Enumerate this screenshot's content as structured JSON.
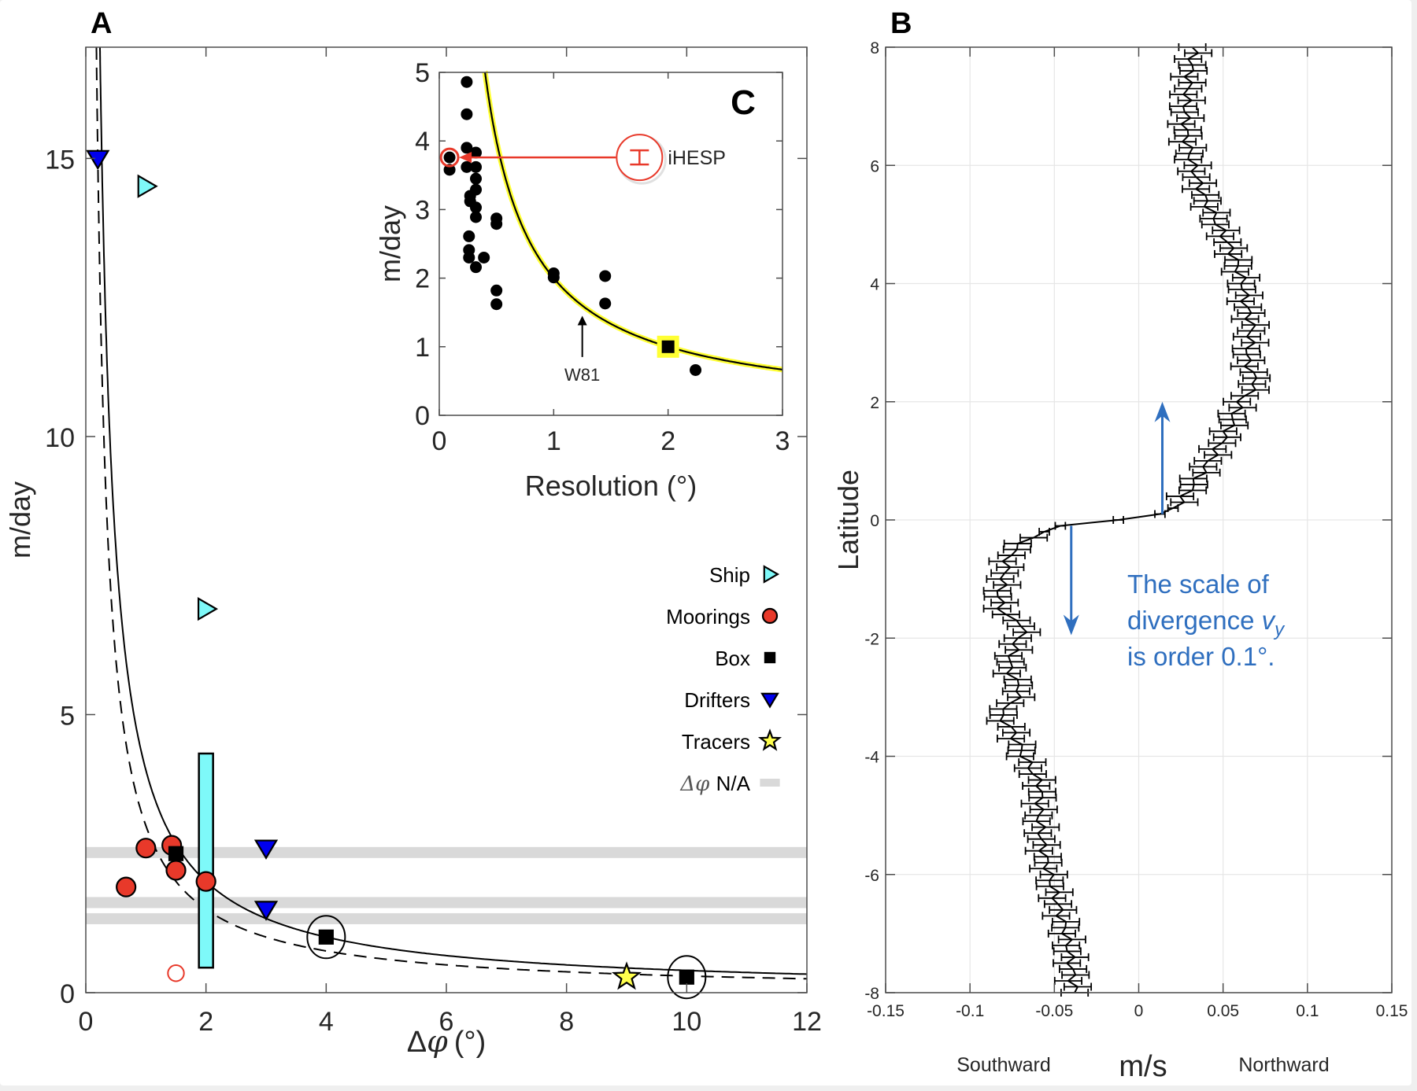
{
  "figure": {
    "panel_labels": {
      "a": "A",
      "b": "B",
      "c": "C"
    }
  },
  "chart_data": [
    {
      "id": "panelA",
      "type": "scatter",
      "title": "",
      "panel_label": "A",
      "xlabel": "Δφ (°)",
      "xlabel_symbol": "Δ",
      "xlabel_var": "φ",
      "xlabel_unit": "(°)",
      "ylabel": "m/day",
      "xlim": [
        0,
        12
      ],
      "ylim": [
        0,
        17
      ],
      "xticks": [
        0,
        2,
        4,
        6,
        8,
        10,
        12
      ],
      "yticks": [
        0,
        5,
        10,
        15
      ],
      "grid": false,
      "legend_position": "right-middle",
      "curves": [
        {
          "name": "solid fit",
          "style": "solid",
          "coefficient": 4,
          "formula": "y = 4/x"
        },
        {
          "name": "dashed fit",
          "style": "dashed",
          "coefficient": 3,
          "formula": "y = 3/x"
        }
      ],
      "na_bands": [
        2.52,
        1.62,
        1.33
      ],
      "range_bar": {
        "series": "Ship",
        "x": 2.0,
        "ymin": 0.45,
        "ymax": 4.3
      },
      "series": [
        {
          "name": "Ship",
          "marker": "triangle-right",
          "color": "#7ef9f9",
          "points": [
            [
              1.0,
              14.5
            ],
            [
              2.0,
              6.9
            ]
          ]
        },
        {
          "name": "Moorings",
          "marker": "circle",
          "color": "#e8392a",
          "points": [
            [
              0.67,
              1.9
            ],
            [
              1.0,
              2.6
            ],
            [
              1.43,
              2.65
            ],
            [
              1.5,
              2.2
            ],
            [
              2.0,
              2.0
            ]
          ]
        },
        {
          "name": "Moorings (open)",
          "marker": "open-circle",
          "color": "#e8392a",
          "points": [
            [
              1.5,
              0.35
            ]
          ]
        },
        {
          "name": "Box",
          "marker": "square",
          "color": "#000000",
          "points": [
            [
              1.5,
              2.5
            ],
            [
              4.0,
              1.0
            ],
            [
              10.0,
              0.28
            ]
          ],
          "circled": [
            [
              4.0,
              1.0
            ],
            [
              10.0,
              0.28
            ]
          ]
        },
        {
          "name": "Drifters",
          "marker": "triangle-down",
          "color": "#0000ee",
          "points": [
            [
              0.2,
              15.0
            ],
            [
              3.0,
              2.6
            ],
            [
              3.0,
              1.5
            ]
          ]
        },
        {
          "name": "Tracers",
          "marker": "star",
          "color": "#ffff4d",
          "points": [
            [
              9.0,
              0.28
            ]
          ]
        }
      ],
      "legend": [
        {
          "label": "Ship",
          "marker": "triangle-right",
          "color": "#7ef9f9"
        },
        {
          "label": "Moorings",
          "marker": "circle",
          "color": "#e8392a"
        },
        {
          "label": "Box",
          "marker": "square",
          "color": "#000000"
        },
        {
          "label": "Drifters",
          "marker": "triangle-down",
          "color": "#0000ee"
        },
        {
          "label": "Tracers",
          "marker": "star",
          "color": "#ffff4d"
        },
        {
          "label": "N/A",
          "label_prefix": "Δφ",
          "marker": "band",
          "color": "#d9d9d9"
        }
      ]
    },
    {
      "id": "panelC",
      "type": "scatter",
      "panel_label": "C",
      "xlabel": "Resolution (°)",
      "ylabel": "m/day",
      "xlim": [
        0,
        3
      ],
      "ylim": [
        0,
        5
      ],
      "xticks": [
        0,
        1,
        2,
        3
      ],
      "yticks": [
        0,
        1,
        2,
        3,
        4,
        5
      ],
      "grid": false,
      "curve": {
        "style": "solid-with-yellow-halo",
        "coefficient": 2,
        "formula": "y = 2/x",
        "halo_color": "#ffff33"
      },
      "points": [
        [
          0.24,
          4.86
        ],
        [
          0.24,
          4.39
        ],
        [
          0.24,
          3.9
        ],
        [
          0.09,
          3.58
        ],
        [
          0.32,
          3.83
        ],
        [
          0.24,
          3.62
        ],
        [
          0.32,
          3.62
        ],
        [
          0.32,
          3.45
        ],
        [
          0.32,
          3.29
        ],
        [
          0.27,
          3.2
        ],
        [
          0.27,
          3.12
        ],
        [
          0.32,
          3.03
        ],
        [
          0.32,
          2.89
        ],
        [
          0.5,
          2.87
        ],
        [
          0.5,
          2.79
        ],
        [
          0.26,
          2.61
        ],
        [
          0.26,
          2.41
        ],
        [
          0.26,
          2.3
        ],
        [
          0.39,
          2.3
        ],
        [
          0.32,
          2.16
        ],
        [
          0.5,
          1.82
        ],
        [
          0.5,
          1.62
        ],
        [
          1.0,
          2.07
        ],
        [
          1.0,
          2.01
        ],
        [
          1.45,
          2.03
        ],
        [
          1.45,
          1.63
        ],
        [
          2.24,
          0.66
        ]
      ],
      "highlight_point": {
        "label": "iHESP",
        "x": 0.09,
        "y": 3.76,
        "color": "#e8392a"
      },
      "box_point": {
        "x": 2.0,
        "y": 1.0,
        "halo_color": "#ffff33"
      },
      "annotations": [
        {
          "text": "W81",
          "x": 1.25,
          "arrow_from_y": 0.85,
          "arrow_to_y": 1.45
        },
        {
          "text": "iHESP",
          "callout_x": 1.75,
          "callout_y": 3.76
        }
      ]
    },
    {
      "id": "panelB",
      "type": "line",
      "panel_label": "B",
      "xlabel": "m/s",
      "xlabel_left": "Southward",
      "xlabel_right": "Northward",
      "ylabel": "Latitude",
      "xlim": [
        -0.15,
        0.15
      ],
      "ylim": [
        -8,
        8
      ],
      "xticks": [
        -0.15,
        -0.1,
        -0.05,
        0,
        0.05,
        0.1,
        0.15
      ],
      "xtick_labels": [
        "-0.15",
        "-0.1",
        "-0.05",
        "0",
        "0.05",
        "0.1",
        "0.15"
      ],
      "yticks": [
        -8,
        -6,
        -4,
        -2,
        0,
        2,
        4,
        6,
        8
      ],
      "grid": true,
      "errorbar_step_deg": 0.1,
      "errorbar_halfwidth": 0.008,
      "errorbar_halfwidth_equator": 0.003,
      "profile": [
        [
          -8,
          -0.038
        ],
        [
          -7.5,
          -0.04
        ],
        [
          -7,
          -0.043
        ],
        [
          -6.5,
          -0.048
        ],
        [
          -6,
          -0.053
        ],
        [
          -5.5,
          -0.057
        ],
        [
          -5,
          -0.059
        ],
        [
          -4.5,
          -0.058
        ],
        [
          -4,
          -0.068
        ],
        [
          -3.5,
          -0.076
        ],
        [
          -3.3,
          -0.083
        ],
        [
          -3.1,
          -0.075
        ],
        [
          -2.9,
          -0.07
        ],
        [
          -2.5,
          -0.077
        ],
        [
          -2.1,
          -0.073
        ],
        [
          -1.8,
          -0.067
        ],
        [
          -1.6,
          -0.08
        ],
        [
          -1.3,
          -0.083
        ],
        [
          -1.0,
          -0.08
        ],
        [
          -0.6,
          -0.077
        ],
        [
          -0.3,
          -0.065
        ],
        [
          -0.1,
          -0.045
        ],
        [
          0,
          -0.015
        ],
        [
          0.1,
          0.015
        ],
        [
          0.3,
          0.025
        ],
        [
          0.5,
          0.03
        ],
        [
          1.0,
          0.042
        ],
        [
          1.5,
          0.053
        ],
        [
          2.0,
          0.06
        ],
        [
          2.3,
          0.07
        ],
        [
          2.7,
          0.064
        ],
        [
          3.0,
          0.066
        ],
        [
          3.3,
          0.067
        ],
        [
          3.7,
          0.063
        ],
        [
          4.0,
          0.062
        ],
        [
          4.5,
          0.056
        ],
        [
          5.0,
          0.047
        ],
        [
          5.5,
          0.038
        ],
        [
          6.0,
          0.032
        ],
        [
          6.5,
          0.028
        ],
        [
          7.0,
          0.028
        ],
        [
          7.5,
          0.03
        ],
        [
          8.0,
          0.033
        ]
      ],
      "arrows": [
        {
          "direction": "up",
          "x": 0.014,
          "from_lat": 0.1,
          "to_lat": 2.0,
          "color": "#2f6fbf"
        },
        {
          "direction": "down",
          "x": -0.04,
          "from_lat": -0.1,
          "to_lat": -1.95,
          "color": "#2f6fbf"
        }
      ],
      "annotation": {
        "lines": [
          "The scale of",
          "divergence ",
          "is order 0.1°."
        ],
        "math_var": "v",
        "math_sub": "y",
        "color": "#2f6fbf"
      }
    }
  ]
}
